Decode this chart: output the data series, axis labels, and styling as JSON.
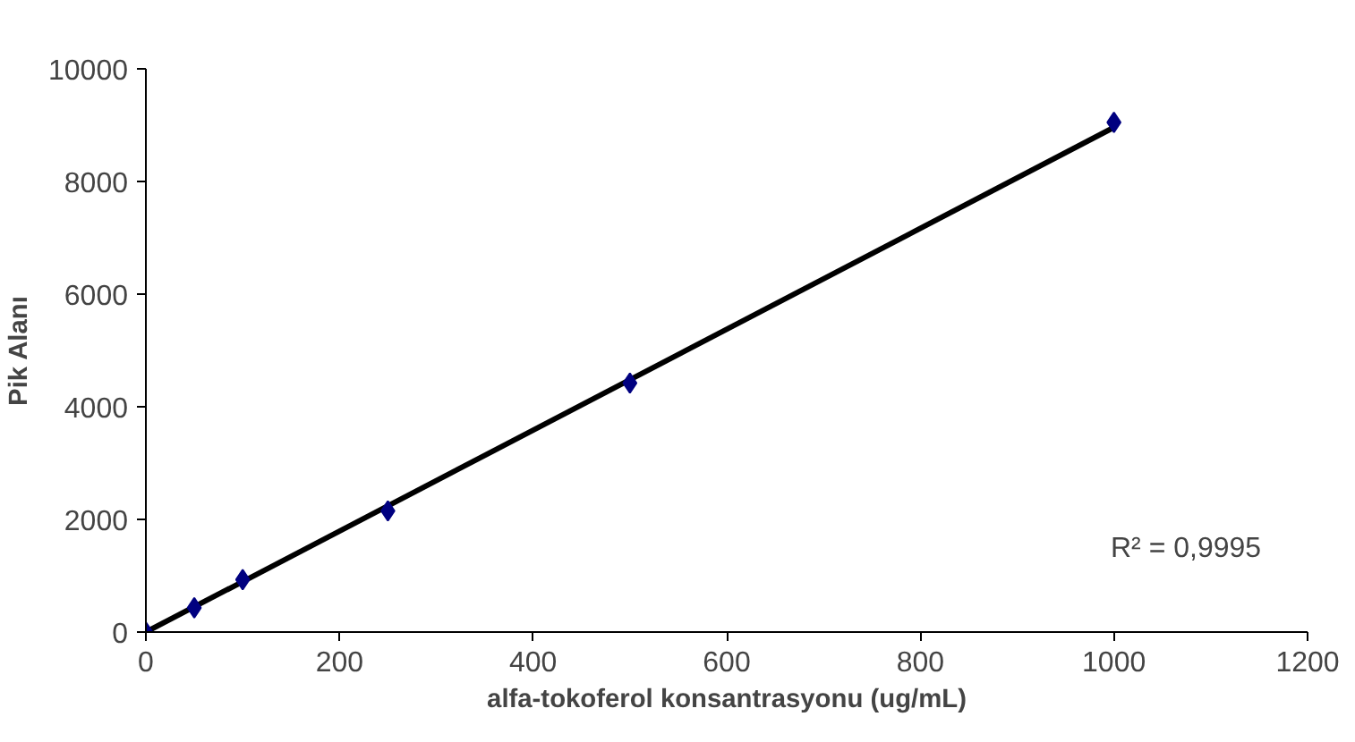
{
  "chart_data": {
    "type": "scatter",
    "xlabel": "alfa-tokoferol konsantrasyonu (ug/mL)",
    "ylabel": "Pik Alanı",
    "x": [
      0,
      50,
      100,
      250,
      500,
      1000
    ],
    "series": [
      {
        "color": "#000080",
        "marker": "diamond",
        "values": [
          0,
          430,
          930,
          2150,
          4420,
          9050
        ]
      },
      {
        "type": "line",
        "color": "#000000",
        "x": [
          0,
          1000
        ],
        "values": [
          0,
          8960
        ]
      }
    ],
    "xlim": [
      0,
      1200
    ],
    "xticks": [
      0,
      200,
      400,
      600,
      800,
      1000,
      1200
    ],
    "ylim": [
      0,
      10000
    ],
    "yticks": [
      0,
      2000,
      4000,
      6000,
      8000,
      10000
    ],
    "grid": false,
    "annotations": [
      "R² = 0,9995"
    ]
  }
}
